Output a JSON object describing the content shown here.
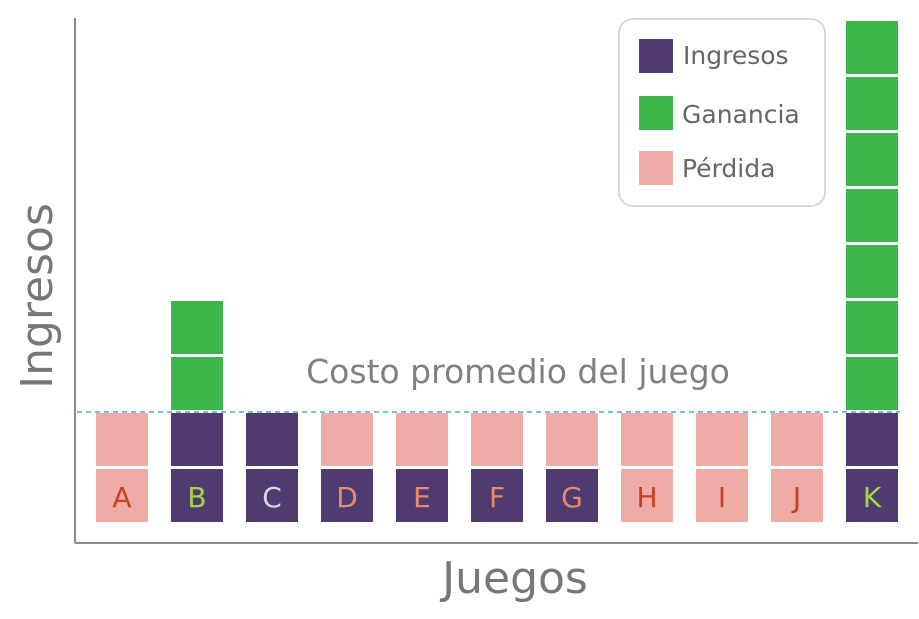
{
  "chart_data": {
    "type": "bar",
    "stacked": true,
    "xlabel": "Juegos",
    "ylabel": "Ingresos",
    "categories": [
      "A",
      "B",
      "C",
      "D",
      "E",
      "F",
      "G",
      "H",
      "I",
      "J",
      "K"
    ],
    "stacks": [
      [
        "Pérdida",
        "Pérdida"
      ],
      [
        "Ingresos",
        "Ingresos",
        "Ganancia",
        "Ganancia"
      ],
      [
        "Ingresos",
        "Ingresos"
      ],
      [
        "Ingresos",
        "Pérdida"
      ],
      [
        "Ingresos",
        "Pérdida"
      ],
      [
        "Ingresos",
        "Pérdida"
      ],
      [
        "Ingresos",
        "Pérdida"
      ],
      [
        "Pérdida",
        "Pérdida"
      ],
      [
        "Pérdida",
        "Pérdida"
      ],
      [
        "Pérdida",
        "Pérdida"
      ],
      [
        "Ingresos",
        "Ingresos",
        "Ganancia",
        "Ganancia",
        "Ganancia",
        "Ganancia",
        "Ganancia",
        "Ganancia",
        "Ganancia"
      ]
    ],
    "series": [
      {
        "name": "Ingresos",
        "color": "#4f3b70",
        "values": [
          0,
          2,
          2,
          1,
          1,
          1,
          1,
          0,
          0,
          0,
          2
        ]
      },
      {
        "name": "Ganancia",
        "color": "#3cb64a",
        "values": [
          0,
          2,
          0,
          0,
          0,
          0,
          0,
          0,
          0,
          0,
          7
        ]
      },
      {
        "name": "Pérdida",
        "color": "#efaca6",
        "values": [
          2,
          0,
          0,
          1,
          1,
          1,
          1,
          2,
          2,
          2,
          0
        ]
      }
    ],
    "label_colors": [
      "#c8401e",
      "#a4d64a",
      "#d8d8e0",
      "#e8896a",
      "#e8896a",
      "#e8896a",
      "#e8896a",
      "#c8401e",
      "#c8401e",
      "#c8401e",
      "#a4d64a"
    ],
    "reference_line": {
      "label": "Costo promedio del juego",
      "value": 2,
      "color": "#4aa8c8"
    },
    "ylim": [
      0,
      9
    ],
    "legend": {
      "position": "top-right",
      "items": [
        "Ingresos",
        "Ganancia",
        "Pérdida"
      ]
    },
    "grid": false
  }
}
